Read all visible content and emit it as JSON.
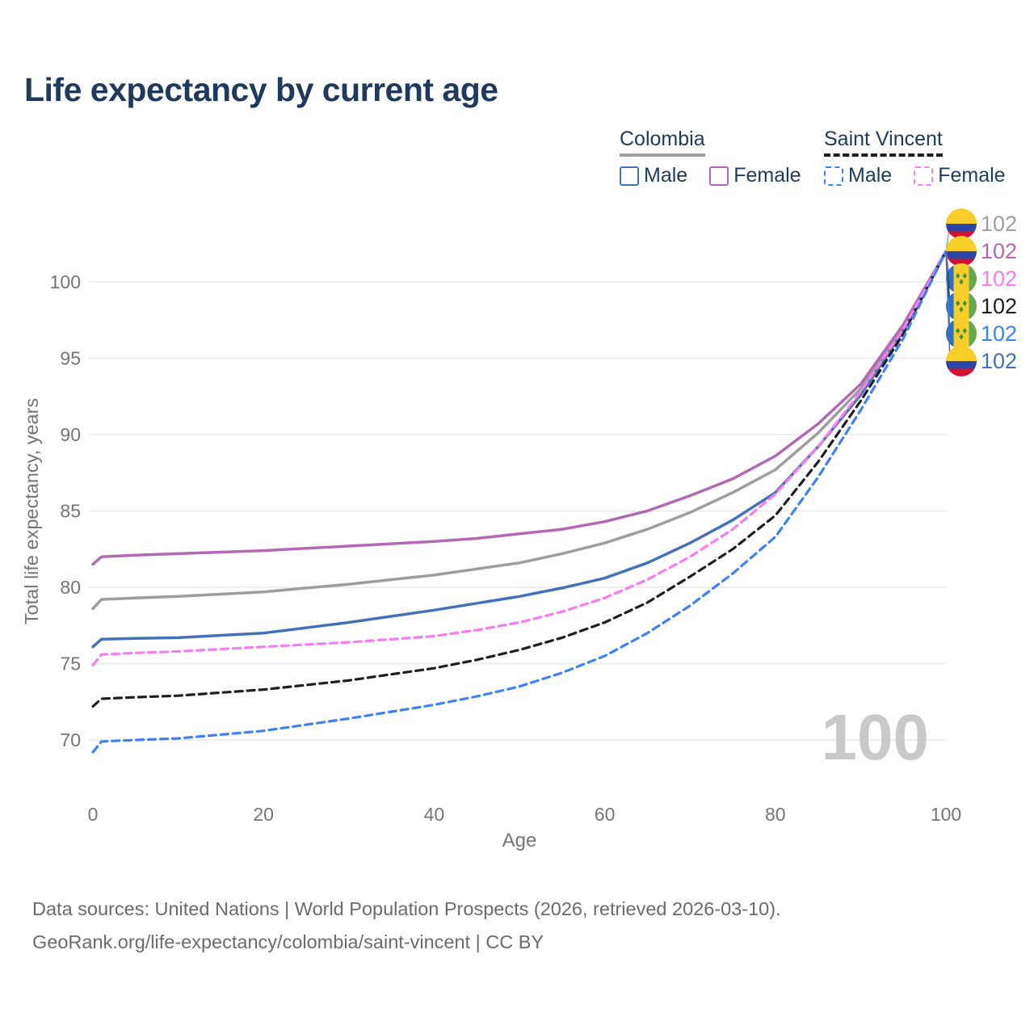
{
  "title": "Life expectancy by current age",
  "watermark_age": "100",
  "colors": {
    "title": "#1f3a5c",
    "axis_text": "#757575",
    "grid": "#eaeaea",
    "footer": "#6b6b6b",
    "watermark": "#c9c9c9"
  },
  "legend": {
    "groups": [
      {
        "country": "Colombia",
        "line_style": "solid",
        "underline_color": "#9e9e9e",
        "items": [
          {
            "label": "Male",
            "color": "#4472b8"
          },
          {
            "label": "Female",
            "color": "#b16ab3"
          }
        ]
      },
      {
        "country": "Saint Vincent",
        "line_style": "dashed",
        "underline_color": "#1f1f1f",
        "items": [
          {
            "label": "Male",
            "color": "#3f82f5"
          },
          {
            "label": "Female",
            "color": "#fa7df0"
          }
        ]
      }
    ]
  },
  "axes": {
    "x": {
      "label": "Age",
      "ticks": [
        0,
        20,
        40,
        60,
        80,
        100
      ],
      "range": [
        0,
        100
      ]
    },
    "y": {
      "label": "Total life expectancy, years",
      "ticks": [
        70,
        75,
        80,
        85,
        90,
        95,
        100
      ],
      "range": [
        68.5,
        102.5
      ]
    }
  },
  "end_labels": [
    {
      "series": "Colombia (both sexes)",
      "flag": "colombia",
      "value": "102",
      "color": "#9e9e9e"
    },
    {
      "series": "Colombia Female",
      "flag": "colombia",
      "value": "102",
      "color": "#b16ab3"
    },
    {
      "series": "Saint Vincent Female",
      "flag": "saint-vincent",
      "value": "102",
      "color": "#fa7df0"
    },
    {
      "series": "Saint Vincent (both sexes)",
      "flag": "saint-vincent",
      "value": "102",
      "color": "#1f1f1f"
    },
    {
      "series": "Saint Vincent Male",
      "flag": "saint-vincent",
      "value": "102",
      "color": "#3f82f5"
    },
    {
      "series": "Colombia Male",
      "flag": "colombia",
      "value": "102",
      "color": "#4472b8"
    }
  ],
  "chart_data": {
    "type": "line",
    "title": "Life expectancy by current age",
    "xlabel": "Age",
    "ylabel": "Total life expectancy, years",
    "xlim": [
      0,
      100
    ],
    "ylim": [
      68.5,
      103
    ],
    "grid": "horizontal",
    "legend_position": "top-right",
    "x": [
      0,
      1,
      5,
      10,
      15,
      20,
      25,
      30,
      35,
      40,
      45,
      50,
      55,
      60,
      65,
      70,
      75,
      80,
      85,
      90,
      95,
      100
    ],
    "series": [
      {
        "name": "Colombia (both sexes)",
        "color": "#9e9e9e",
        "style": "solid",
        "values": [
          78.6,
          79.2,
          79.3,
          79.4,
          79.55,
          79.7,
          79.95,
          80.2,
          80.5,
          80.8,
          81.2,
          81.6,
          82.2,
          82.9,
          83.8,
          84.9,
          86.2,
          87.7,
          90.1,
          93.0,
          97.0,
          102
        ]
      },
      {
        "name": "Colombia Female",
        "color": "#b16ab3",
        "style": "solid",
        "values": [
          81.5,
          82.0,
          82.1,
          82.2,
          82.3,
          82.4,
          82.55,
          82.7,
          82.85,
          83.0,
          83.2,
          83.5,
          83.8,
          84.3,
          85.0,
          86.0,
          87.1,
          88.6,
          90.7,
          93.3,
          97.2,
          102
        ]
      },
      {
        "name": "Colombia Male",
        "color": "#4472b8",
        "style": "solid",
        "values": [
          76.1,
          76.6,
          76.65,
          76.7,
          76.85,
          77.0,
          77.35,
          77.7,
          78.1,
          78.5,
          78.95,
          79.4,
          79.95,
          80.6,
          81.6,
          82.9,
          84.4,
          86.2,
          89.2,
          92.6,
          96.8,
          102
        ]
      },
      {
        "name": "Saint Vincent (both sexes)",
        "color": "#1f1f1f",
        "style": "dashed",
        "values": [
          72.2,
          72.7,
          72.8,
          72.9,
          73.1,
          73.3,
          73.6,
          73.9,
          74.3,
          74.7,
          75.25,
          75.9,
          76.7,
          77.7,
          79.0,
          80.7,
          82.5,
          84.7,
          88.2,
          92.2,
          96.6,
          102
        ]
      },
      {
        "name": "Saint Vincent Female",
        "color": "#fa7df0",
        "style": "dashed",
        "values": [
          74.9,
          75.6,
          75.7,
          75.8,
          75.95,
          76.1,
          76.25,
          76.4,
          76.6,
          76.8,
          77.2,
          77.7,
          78.4,
          79.3,
          80.5,
          82.0,
          83.8,
          86.1,
          89.2,
          92.8,
          96.9,
          102
        ]
      },
      {
        "name": "Saint Vincent Male",
        "color": "#3f82f5",
        "style": "dashed",
        "values": [
          69.2,
          69.9,
          70.0,
          70.1,
          70.35,
          70.6,
          71.0,
          71.4,
          71.85,
          72.3,
          72.85,
          73.5,
          74.4,
          75.5,
          77.0,
          78.8,
          80.9,
          83.3,
          87.2,
          91.6,
          96.3,
          102
        ]
      }
    ],
    "end_value_all_series": 102
  },
  "footer": {
    "line1": "Data sources: United Nations | World Population Prospects (2026, retrieved 2026-03-10).",
    "line2": "GeoRank.org/life-expectancy/colombia/saint-vincent | CC BY"
  }
}
